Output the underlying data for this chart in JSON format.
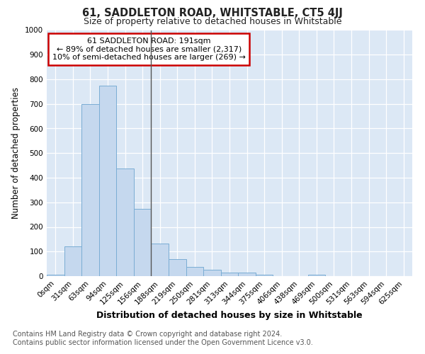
{
  "title": "61, SADDLETON ROAD, WHITSTABLE, CT5 4JJ",
  "subtitle": "Size of property relative to detached houses in Whitstable",
  "xlabel": "Distribution of detached houses by size in Whitstable",
  "ylabel": "Number of detached properties",
  "bar_color": "#c5d8ee",
  "bar_edge_color": "#7aadd4",
  "background_color": "#dce8f5",
  "grid_color": "#ffffff",
  "fig_background": "#ffffff",
  "categories": [
    "0sqm",
    "31sqm",
    "63sqm",
    "94sqm",
    "125sqm",
    "156sqm",
    "188sqm",
    "219sqm",
    "250sqm",
    "281sqm",
    "313sqm",
    "344sqm",
    "375sqm",
    "406sqm",
    "438sqm",
    "469sqm",
    "500sqm",
    "531sqm",
    "563sqm",
    "594sqm",
    "625sqm"
  ],
  "values": [
    5,
    122,
    700,
    775,
    438,
    272,
    133,
    68,
    38,
    25,
    15,
    15,
    5,
    0,
    0,
    5,
    0,
    0,
    0,
    0,
    0
  ],
  "ylim": [
    0,
    1000
  ],
  "yticks": [
    0,
    100,
    200,
    300,
    400,
    500,
    600,
    700,
    800,
    900,
    1000
  ],
  "vline_x": 6,
  "annotation_line1": "61 SADDLETON ROAD: 191sqm",
  "annotation_line2": "← 89% of detached houses are smaller (2,317)",
  "annotation_line3": "10% of semi-detached houses are larger (269) →",
  "annotation_box_color": "#ffffff",
  "annotation_box_edge": "#cc0000",
  "footer_line1": "Contains HM Land Registry data © Crown copyright and database right 2024.",
  "footer_line2": "Contains public sector information licensed under the Open Government Licence v3.0.",
  "title_fontsize": 10.5,
  "subtitle_fontsize": 9,
  "xlabel_fontsize": 9,
  "ylabel_fontsize": 8.5,
  "tick_fontsize": 7.5,
  "annotation_fontsize": 8,
  "footer_fontsize": 7
}
